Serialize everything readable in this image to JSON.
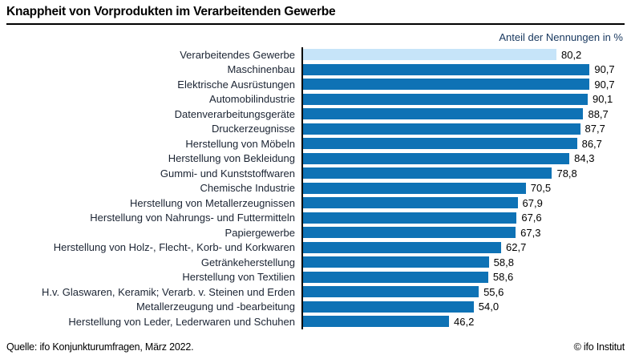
{
  "title": "Knappheit von Vorprodukten im Verarbeitenden Gewerbe",
  "subtitle": "Anteil der Nennungen in %",
  "footer": {
    "source": "Quelle: ifo Konjunkturumfragen, März 2022.",
    "copyright": "© ifo Institut"
  },
  "colors": {
    "bar": "#0e72b5",
    "highlight_bar": "#c6e4f9",
    "axis": "#000000",
    "subtitle_text": "#17375e"
  },
  "chart_data": {
    "type": "bar",
    "orientation": "horizontal",
    "title": "Knappheit von Vorprodukten im Verarbeitenden Gewerbe",
    "xlabel": "Anteil der Nennungen in %",
    "ylabel": "",
    "xlim": [
      0,
      100
    ],
    "grid": false,
    "highlight_index": 0,
    "categories": [
      "Verarbeitendes Gewerbe",
      "Maschinenbau",
      "Elektrische Ausrüstungen",
      "Automobilindustrie",
      "Datenverarbeitungsgeräte",
      "Druckerzeugnisse",
      "Herstellung von Möbeln",
      "Herstellung von Bekleidung",
      "Gummi- und Kunststoffwaren",
      "Chemische Industrie",
      "Herstellung von Metallerzeugnissen",
      "Herstellung von Nahrungs- und Futtermitteln",
      "Papiergewerbe",
      "Herstellung von Holz-, Flecht-, Korb- und Korkwaren",
      "Getränkeherstellung",
      "Herstellung von Textilien",
      "H.v. Glaswaren, Keramik; Verarb. v. Steinen und Erden",
      "Metallerzeugung und -bearbeitung",
      "Herstellung von Leder, Lederwaren und Schuhen"
    ],
    "values": [
      80.2,
      90.7,
      90.7,
      90.1,
      88.7,
      87.7,
      86.7,
      84.3,
      78.8,
      70.5,
      67.9,
      67.6,
      67.3,
      62.7,
      58.8,
      58.6,
      55.6,
      54.0,
      46.2
    ],
    "value_labels": [
      "80,2",
      "90,7",
      "90,7",
      "90,1",
      "88,7",
      "87,7",
      "86,7",
      "84,3",
      "78,8",
      "70,5",
      "67,9",
      "67,6",
      "67,3",
      "62,7",
      "58,8",
      "58,6",
      "55,6",
      "54,0",
      "46,2"
    ]
  }
}
